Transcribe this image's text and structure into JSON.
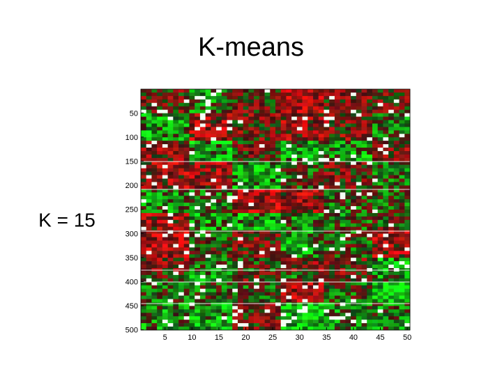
{
  "title": "K-means",
  "label": "K = 15",
  "figure": {
    "type": "heatmap",
    "xlim": [
      0.5,
      50.5
    ],
    "ylim": [
      0.5,
      500.5
    ],
    "xticks": [
      5,
      10,
      15,
      20,
      25,
      30,
      35,
      40,
      45,
      50
    ],
    "yticks": [
      50,
      100,
      150,
      200,
      250,
      300,
      350,
      400,
      450,
      500
    ]
  }
}
